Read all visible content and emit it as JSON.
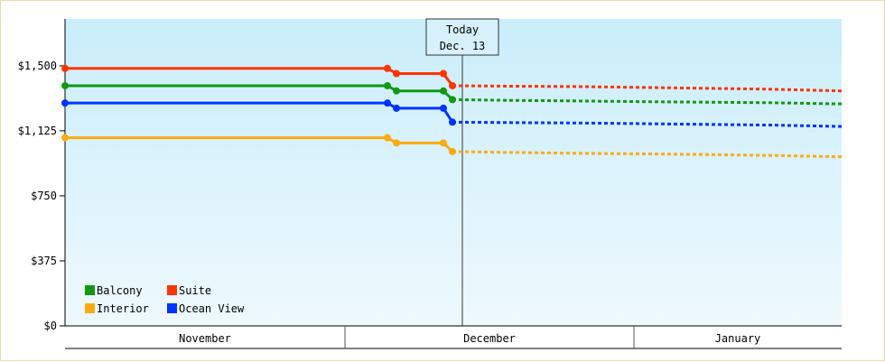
{
  "chart_data": {
    "type": "line",
    "y_ticks": [
      "$0",
      "$375",
      "$750",
      "$1,125",
      "$1,500"
    ],
    "y_tick_values": [
      0,
      375,
      750,
      1125,
      1500
    ],
    "ylim": [
      0,
      1770
    ],
    "months": [
      "November",
      "December",
      "January"
    ],
    "x_domain_days": [
      0,
      86
    ],
    "month_boundaries_days": [
      31,
      63
    ],
    "today": {
      "line1": "Today",
      "line2": "Dec. 13",
      "day": 44
    },
    "grid": false,
    "legend_position": "bottom-left",
    "series": [
      {
        "name": "Balcony",
        "color": "#119911",
        "actual": [
          [
            0,
            1385
          ],
          [
            35.7,
            1385
          ],
          [
            36.7,
            1355
          ],
          [
            41.9,
            1355
          ],
          [
            42.9,
            1305
          ]
        ],
        "forecast": [
          [
            42.9,
            1305
          ],
          [
            50,
            1300
          ],
          [
            57,
            1297
          ],
          [
            64,
            1293
          ],
          [
            71,
            1290
          ],
          [
            78,
            1287
          ],
          [
            86,
            1280
          ]
        ]
      },
      {
        "name": "Suite",
        "color": "#ff3300",
        "actual": [
          [
            0,
            1485
          ],
          [
            35.7,
            1485
          ],
          [
            36.7,
            1455
          ],
          [
            41.9,
            1455
          ],
          [
            42.9,
            1385
          ]
        ],
        "forecast": [
          [
            42.9,
            1385
          ],
          [
            50,
            1382
          ],
          [
            57,
            1380
          ],
          [
            64,
            1375
          ],
          [
            71,
            1370
          ],
          [
            78,
            1365
          ],
          [
            86,
            1355
          ]
        ]
      },
      {
        "name": "Interior",
        "color": "#ffaa11",
        "actual": [
          [
            0,
            1085
          ],
          [
            35.7,
            1085
          ],
          [
            36.7,
            1055
          ],
          [
            41.9,
            1055
          ],
          [
            42.9,
            1005
          ]
        ],
        "forecast": [
          [
            42.9,
            1005
          ],
          [
            50,
            1000
          ],
          [
            57,
            995
          ],
          [
            64,
            992
          ],
          [
            71,
            988
          ],
          [
            78,
            983
          ],
          [
            86,
            975
          ]
        ]
      },
      {
        "name": "Ocean View",
        "color": "#0033ff",
        "actual": [
          [
            0,
            1285
          ],
          [
            35.7,
            1285
          ],
          [
            36.7,
            1255
          ],
          [
            41.9,
            1255
          ],
          [
            42.9,
            1175
          ]
        ],
        "forecast": [
          [
            42.9,
            1175
          ],
          [
            50,
            1172
          ],
          [
            57,
            1170
          ],
          [
            64,
            1166
          ],
          [
            71,
            1162
          ],
          [
            78,
            1158
          ],
          [
            86,
            1150
          ]
        ]
      }
    ]
  }
}
